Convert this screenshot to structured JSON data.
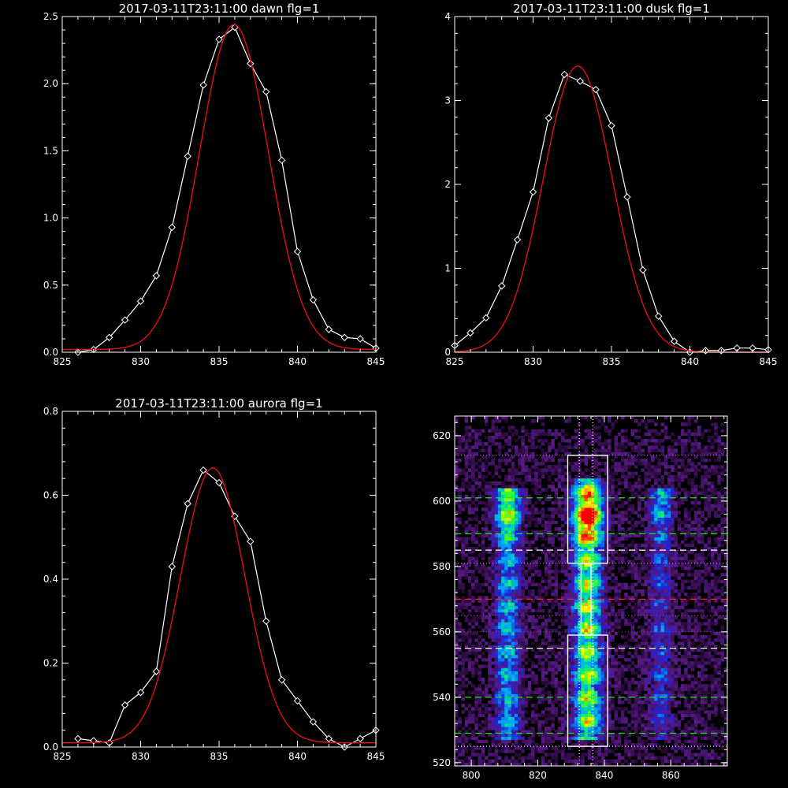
{
  "chart_data": [
    {
      "id": "dawn",
      "type": "line",
      "title": "2017-03-11T23:11:00 dawn flg=1",
      "xlim": [
        825,
        845
      ],
      "ylim": [
        0,
        2.5
      ],
      "xticks": [
        825,
        830,
        835,
        840,
        845
      ],
      "xtick_labels": [
        "825",
        "830",
        "835",
        "840",
        "845"
      ],
      "yticks": [
        0,
        0.5,
        1.0,
        1.5,
        2.0,
        2.5
      ],
      "ytick_labels": [
        "0.0",
        "0.5",
        "1.0",
        "1.5",
        "2.0",
        "2.5"
      ],
      "series": [
        {
          "role": "data",
          "color": "#ffffff",
          "marker": "diamond",
          "x": [
            826,
            827,
            828,
            829,
            830,
            831,
            832,
            833,
            834,
            835,
            836,
            837,
            838,
            839,
            840,
            841,
            842,
            843,
            844,
            845
          ],
          "y": [
            0.0,
            0.02,
            0.11,
            0.24,
            0.38,
            0.57,
            0.93,
            1.46,
            1.99,
            2.33,
            2.42,
            2.15,
            1.94,
            1.43,
            0.75,
            0.39,
            0.17,
            0.11,
            0.1,
            0.03
          ]
        },
        {
          "role": "fit",
          "color": "#e01010",
          "gauss": {
            "amp": 2.42,
            "center": 835.95,
            "sigma": 2.2,
            "offset": 0.02
          }
        }
      ]
    },
    {
      "id": "dusk",
      "type": "line",
      "title": "2017-03-11T23:11:00 dusk flg=1",
      "xlim": [
        825,
        845
      ],
      "ylim": [
        0,
        4
      ],
      "xticks": [
        825,
        830,
        835,
        840,
        845
      ],
      "xtick_labels": [
        "825",
        "830",
        "835",
        "840",
        "845"
      ],
      "yticks": [
        0,
        1,
        2,
        3,
        4
      ],
      "ytick_labels": [
        "0",
        "1",
        "2",
        "3",
        "4"
      ],
      "series": [
        {
          "role": "data",
          "color": "#ffffff",
          "marker": "diamond",
          "x": [
            825,
            826,
            827,
            828,
            829,
            830,
            831,
            832,
            833,
            834,
            835,
            836,
            837,
            838,
            839,
            840,
            841,
            842,
            843,
            844,
            845
          ],
          "y": [
            0.08,
            0.23,
            0.41,
            0.79,
            1.34,
            1.91,
            2.79,
            3.31,
            3.23,
            3.13,
            2.7,
            1.85,
            0.98,
            0.43,
            0.13,
            0.0,
            0.02,
            0.02,
            0.05,
            0.05,
            0.03
          ]
        },
        {
          "role": "fit",
          "color": "#e01010",
          "gauss": {
            "amp": 3.41,
            "center": 832.85,
            "sigma": 2.2,
            "offset": 0.0
          }
        }
      ]
    },
    {
      "id": "aurora",
      "type": "line",
      "title": "2017-03-11T23:11:00 aurora flg=1",
      "xlim": [
        825,
        845
      ],
      "ylim": [
        0,
        0.8
      ],
      "xticks": [
        825,
        830,
        835,
        840,
        845
      ],
      "xtick_labels": [
        "825",
        "830",
        "835",
        "840",
        "845"
      ],
      "yticks": [
        0,
        0.2,
        0.4,
        0.6,
        0.8
      ],
      "ytick_labels": [
        "0.0",
        "0.2",
        "0.4",
        "0.6",
        "0.8"
      ],
      "series": [
        {
          "role": "data",
          "color": "#ffffff",
          "marker": "diamond",
          "x": [
            826,
            827,
            828,
            829,
            830,
            831,
            832,
            833,
            834,
            835,
            836,
            837,
            838,
            839,
            840,
            841,
            842,
            843,
            844,
            845
          ],
          "y": [
            0.02,
            0.015,
            0.01,
            0.1,
            0.13,
            0.18,
            0.43,
            0.58,
            0.66,
            0.63,
            0.55,
            0.49,
            0.3,
            0.16,
            0.11,
            0.06,
            0.02,
            0.0,
            0.02,
            0.04
          ]
        },
        {
          "role": "fit",
          "color": "#e01010",
          "gauss": {
            "amp": 0.655,
            "center": 834.6,
            "sigma": 2.05,
            "offset": 0.01
          }
        }
      ]
    },
    {
      "id": "image",
      "type": "heatmap",
      "xlim": [
        795,
        877
      ],
      "ylim": [
        519,
        626
      ],
      "xticks": [
        800,
        820,
        840,
        860
      ],
      "xtick_labels": [
        "800",
        "820",
        "840",
        "860"
      ],
      "yticks": [
        520,
        540,
        560,
        580,
        600,
        620
      ],
      "ytick_labels": [
        "520",
        "540",
        "560",
        "580",
        "600",
        "620"
      ],
      "colormap": [
        "#000000",
        "#2a0a3d",
        "#5a1a8a",
        "#2020d0",
        "#00a0ff",
        "#00e0a0",
        "#40ff20",
        "#ffff00",
        "#ff8000",
        "#ff0000"
      ],
      "emission_bands": [
        {
          "x_center": 811,
          "x_width": 2.6,
          "y_range": [
            527,
            603
          ],
          "peak_y": 597,
          "intensity": 0.62
        },
        {
          "x_center": 835,
          "x_width": 3.0,
          "y_range": [
            527,
            606
          ],
          "peak_y": 595,
          "intensity": 1.0
        },
        {
          "x_center": 857,
          "x_width": 2.4,
          "y_range": [
            527,
            603
          ],
          "peak_y": 598,
          "intensity": 0.38
        }
      ],
      "boxes": [
        {
          "x": [
            829,
            841
          ],
          "y": [
            581,
            614
          ],
          "color": "#ffffff"
        },
        {
          "x": [
            829,
            841
          ],
          "y": [
            525,
            559
          ],
          "color": "#ffffff"
        },
        {
          "x": [
            833,
            836
          ],
          "y": [
            559,
            581
          ],
          "color": "#ffffff"
        }
      ],
      "hlines": [
        {
          "y": 614,
          "color": "#ff44ff",
          "style": "dotted"
        },
        {
          "y": 601,
          "color": "#20e020",
          "style": "dashed"
        },
        {
          "y": 590,
          "color": "#20e020",
          "style": "dashed"
        },
        {
          "y": 585,
          "color": "#ffffff",
          "style": "dashed"
        },
        {
          "y": 581,
          "color": "#ff44ff",
          "style": "dotted"
        },
        {
          "y": 570,
          "color": "#ff2020",
          "style": "dashed"
        },
        {
          "y": 565,
          "color": "#ff2020",
          "style": "dotted"
        },
        {
          "y": 560,
          "color": "#ff2020",
          "style": "dotted"
        },
        {
          "y": 555,
          "color": "#ffffff",
          "style": "dashed"
        },
        {
          "y": 540,
          "color": "#20e020",
          "style": "dashed"
        },
        {
          "y": 529,
          "color": "#20e020",
          "style": "dashed"
        },
        {
          "y": 525,
          "color": "#ffff40",
          "style": "dotted"
        }
      ],
      "vlines": [
        {
          "x": 832.5,
          "color": "#ffffff",
          "style": "dotted"
        },
        {
          "x": 836.5,
          "color": "#ffffff",
          "style": "dotted"
        }
      ]
    }
  ]
}
